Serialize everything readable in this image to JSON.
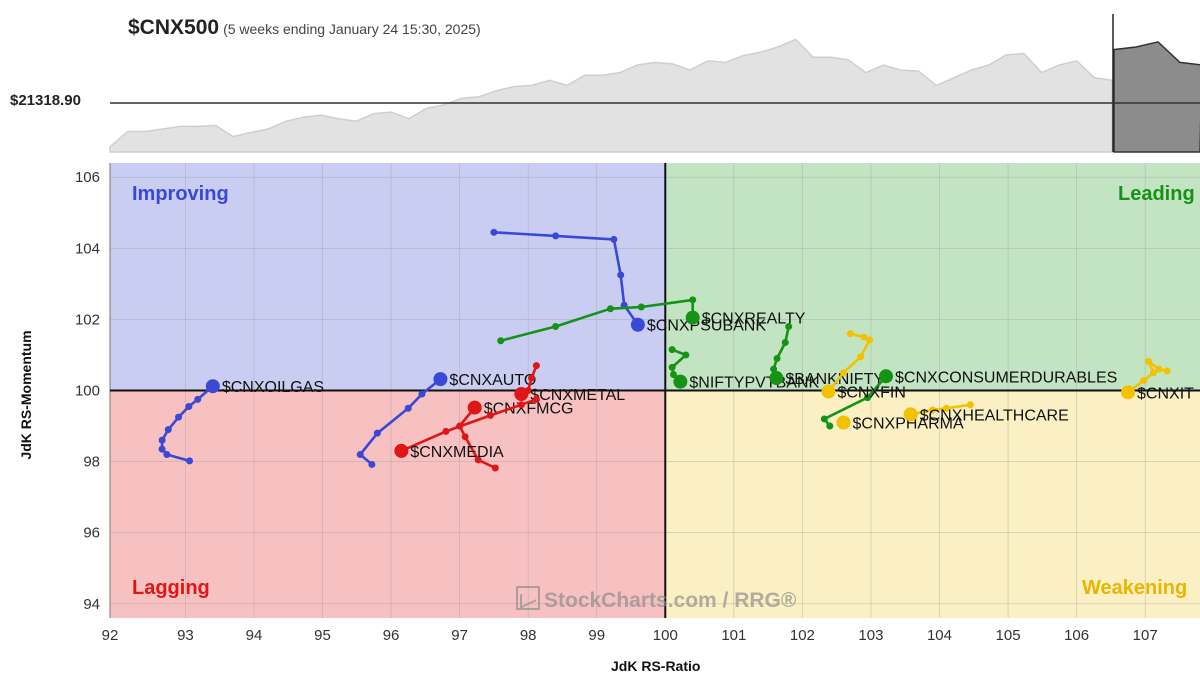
{
  "header": {
    "title": "$CNX500",
    "subtitle": "(5 weeks ending January 24 15:30, 2025)",
    "price": "$21318.90"
  },
  "colors": {
    "improving_bg": "#c9cdf1",
    "leading_bg": "#c3e4c3",
    "weakening_bg": "#fbefc4",
    "lagging_bg": "#f7c1c1",
    "blue": "#3a48d6",
    "green": "#149314",
    "red": "#e01616",
    "yellow": "#f2c200"
  },
  "chart_data": {
    "type": "scatter",
    "title": "$CNX500",
    "xlabel": "JdK RS-Ratio",
    "ylabel": "JdK RS-Momentum",
    "xlim": [
      91.9,
      107.8
    ],
    "ylim": [
      93.6,
      106.4
    ],
    "xticks": [
      93,
      94,
      95,
      96,
      97,
      98,
      99,
      100,
      101,
      102,
      103,
      104,
      105,
      106,
      107
    ],
    "xtick_labels": [
      "93",
      "94",
      "95",
      "96",
      "97",
      "98",
      "99",
      "100",
      "101",
      "102",
      "103",
      "104",
      "105",
      "106",
      "107"
    ],
    "left_edge_label": "92",
    "yticks": [
      94,
      96,
      98,
      100,
      102,
      104,
      106
    ],
    "ytick_labels": [
      "94",
      "96",
      "98",
      "100",
      "102",
      "104",
      "106"
    ],
    "grid": true,
    "center": [
      100,
      100
    ],
    "quadrants": {
      "improving": "Improving",
      "leading": "Leading",
      "weakening": "Weakening",
      "lagging": "Lagging"
    },
    "watermark": "StockCharts.com / RRG®",
    "series": [
      {
        "name": "$CNXOILGAS",
        "color": "blue",
        "points": [
          [
            93.06,
            98.02
          ],
          [
            92.73,
            98.2
          ],
          [
            92.66,
            98.35
          ],
          [
            92.66,
            98.6
          ],
          [
            92.75,
            98.9
          ],
          [
            92.9,
            99.25
          ],
          [
            93.05,
            99.55
          ],
          [
            93.18,
            99.75
          ],
          [
            93.4,
            100.12
          ]
        ]
      },
      {
        "name": "$CNXPSUBANK",
        "color": "blue",
        "points": [
          [
            97.5,
            104.45
          ],
          [
            98.4,
            104.35
          ],
          [
            99.25,
            104.25
          ],
          [
            99.35,
            103.25
          ],
          [
            99.4,
            102.4
          ],
          [
            99.6,
            101.85
          ]
        ]
      },
      {
        "name": "$CNXAUTO",
        "color": "blue",
        "points": [
          [
            95.72,
            97.92
          ],
          [
            95.55,
            98.2
          ],
          [
            95.8,
            98.8
          ],
          [
            96.25,
            99.5
          ],
          [
            96.45,
            99.9
          ],
          [
            96.72,
            100.32
          ]
        ]
      },
      {
        "name": "$CNXREALTY",
        "color": "green",
        "points": [
          [
            97.6,
            101.4
          ],
          [
            98.4,
            101.8
          ],
          [
            99.2,
            102.3
          ],
          [
            99.65,
            102.35
          ],
          [
            100.4,
            102.55
          ],
          [
            100.4,
            102.05
          ]
        ]
      },
      {
        "name": "$NIFTYPVTBANK",
        "color": "green",
        "points": [
          [
            100.1,
            101.15
          ],
          [
            100.3,
            101.0
          ],
          [
            100.1,
            100.65
          ],
          [
            100.12,
            100.45
          ],
          [
            100.22,
            100.25
          ]
        ]
      },
      {
        "name": "$BANKNIFTY",
        "color": "green",
        "points": [
          [
            101.8,
            101.8
          ],
          [
            101.75,
            101.35
          ],
          [
            101.63,
            100.9
          ],
          [
            101.58,
            100.6
          ],
          [
            101.62,
            100.35
          ]
        ]
      },
      {
        "name": "$CNXCONSUMERDURABLES",
        "color": "green",
        "points": [
          [
            102.4,
            99.0
          ],
          [
            102.32,
            99.2
          ],
          [
            102.95,
            99.8
          ],
          [
            103.22,
            100.4
          ]
        ]
      },
      {
        "name": "$CNXMETAL",
        "color": "red",
        "points": [
          [
            98.12,
            100.7
          ],
          [
            98.05,
            100.35
          ],
          [
            98.0,
            100.0
          ],
          [
            97.9,
            99.9
          ]
        ]
      },
      {
        "name": "$CNXFMCG",
        "color": "red",
        "points": [
          [
            97.52,
            97.82
          ],
          [
            97.27,
            98.05
          ],
          [
            97.08,
            98.7
          ],
          [
            97.0,
            99.0
          ],
          [
            97.22,
            99.52
          ]
        ]
      },
      {
        "name": "$CNXMEDIA",
        "color": "red",
        "points": [
          [
            98.12,
            99.75
          ],
          [
            97.9,
            99.6
          ],
          [
            97.45,
            99.3
          ],
          [
            96.8,
            98.85
          ],
          [
            96.15,
            98.3
          ]
        ]
      },
      {
        "name": "$CNXFIN",
        "color": "yellow",
        "points": [
          [
            102.7,
            101.6
          ],
          [
            102.9,
            101.5
          ],
          [
            102.98,
            101.42
          ],
          [
            102.85,
            100.95
          ],
          [
            102.6,
            100.5
          ],
          [
            102.38,
            99.97
          ]
        ]
      },
      {
        "name": "$CNXPHARMA",
        "color": "yellow",
        "points": [
          [
            102.6,
            99.1
          ]
        ]
      },
      {
        "name": "$CNXHEALTHCARE",
        "color": "yellow",
        "points": [
          [
            104.45,
            99.6
          ],
          [
            104.1,
            99.5
          ],
          [
            103.9,
            99.45
          ],
          [
            103.58,
            99.33
          ]
        ]
      },
      {
        "name": "$CNXIT",
        "color": "yellow",
        "points": [
          [
            107.32,
            100.55
          ],
          [
            107.2,
            100.6
          ],
          [
            107.05,
            100.82
          ],
          [
            107.12,
            100.5
          ],
          [
            106.98,
            100.28
          ],
          [
            106.75,
            99.95
          ]
        ]
      }
    ],
    "price_panel": {
      "type": "area",
      "reference_value": 21318.9,
      "reference_label": "$21318.90",
      "values": [
        0.1,
        0.4,
        0.4,
        0.45,
        0.5,
        0.5,
        0.52,
        0.3,
        0.38,
        0.45,
        0.6,
        0.68,
        0.72,
        0.65,
        0.6,
        0.75,
        0.78,
        0.65,
        0.85,
        0.92,
        1.05,
        1.08,
        1.2,
        1.28,
        1.3,
        1.4,
        1.3,
        1.5,
        1.5,
        1.55,
        1.7,
        1.75,
        1.72,
        1.6,
        1.78,
        1.75,
        1.88,
        1.95,
        2.05,
        2.2,
        1.85,
        1.85,
        1.8,
        1.55,
        1.7,
        1.6,
        1.58,
        1.3,
        1.45,
        1.6,
        1.7,
        1.9,
        1.92,
        1.55,
        1.7,
        1.78,
        1.45,
        1.4
      ],
      "ylim": [
        0,
        2.5
      ]
    }
  }
}
